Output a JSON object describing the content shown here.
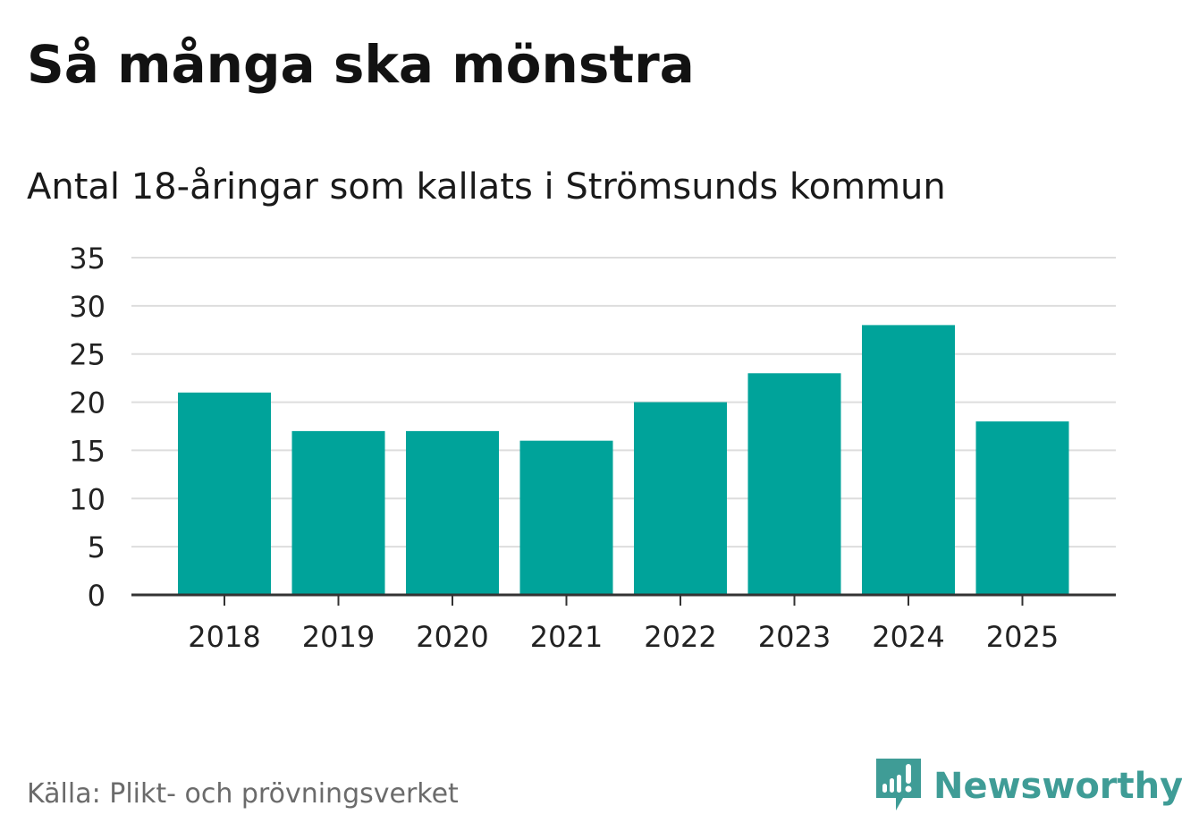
{
  "colors": {
    "bar": "#00a39a",
    "grid": "#dddddd",
    "axis": "#333333",
    "brand": "#3f9c96"
  },
  "chart_data": {
    "type": "bar",
    "title": "Så många ska mönstra",
    "subtitle": "Antal 18-åringar som kallats i Strömsunds kommun",
    "categories": [
      "2018",
      "2019",
      "2020",
      "2021",
      "2022",
      "2023",
      "2024",
      "2025"
    ],
    "values": [
      21,
      17,
      17,
      16,
      20,
      23,
      28,
      18
    ],
    "ylim": [
      0,
      35
    ],
    "yticks": [
      0,
      5,
      10,
      15,
      20,
      25,
      30,
      35
    ],
    "grid": true,
    "xlabel": "",
    "ylabel": ""
  },
  "footer": {
    "source": "Källa: Plikt- och prövningsverket",
    "brand": "Newsworthy",
    "brand_icon": "newsworthy-logo-icon"
  }
}
